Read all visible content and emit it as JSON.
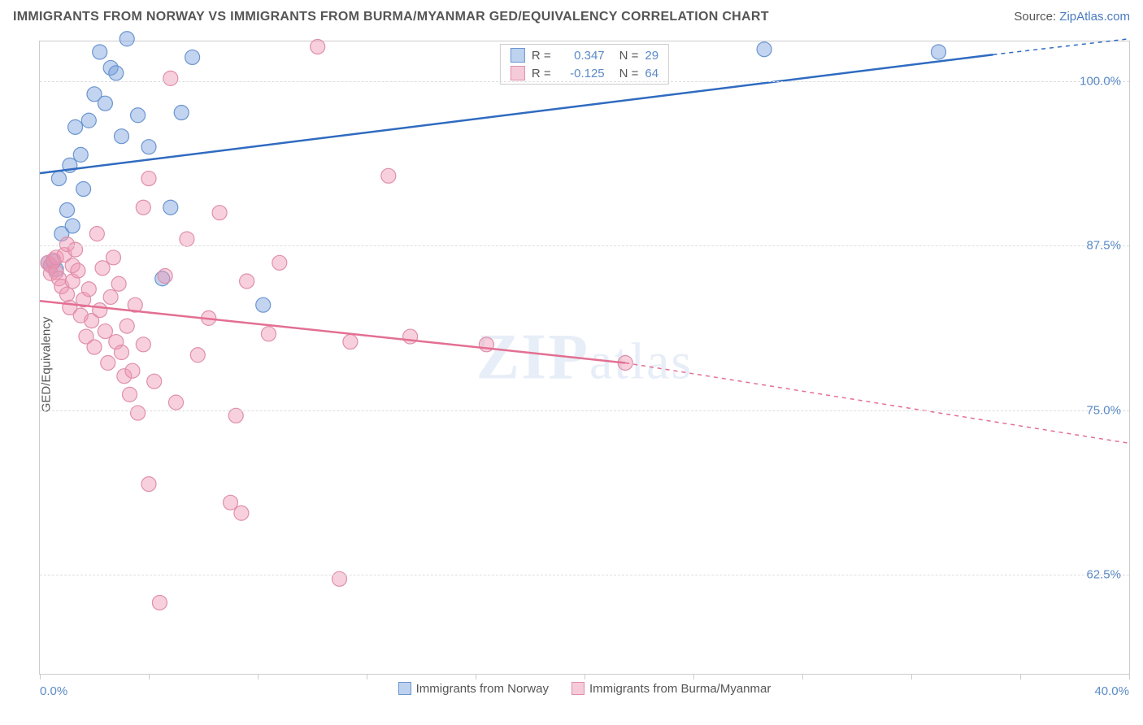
{
  "title": "IMMIGRANTS FROM NORWAY VS IMMIGRANTS FROM BURMA/MYANMAR GED/EQUIVALENCY CORRELATION CHART",
  "source_label": "Source: ",
  "source_link_text": "ZipAtlas.com",
  "ylabel": "GED/Equivalency",
  "watermark": {
    "bold": "ZIP",
    "rest": "atlas"
  },
  "chart": {
    "type": "scatter_with_regression",
    "xlim": [
      0,
      40
    ],
    "ylim": [
      55,
      103
    ],
    "x_ticks_minor": [
      0,
      4,
      8,
      12,
      16,
      20,
      24,
      28,
      32,
      36,
      40
    ],
    "x_labels": [
      {
        "x": 0,
        "text": "0.0%"
      },
      {
        "x": 40,
        "text": "40.0%"
      }
    ],
    "y_gridlines": [
      62.5,
      75.0,
      87.5,
      100.0
    ],
    "y_labels": [
      {
        "y": 62.5,
        "text": "62.5%"
      },
      {
        "y": 75.0,
        "text": "75.0%"
      },
      {
        "y": 87.5,
        "text": "87.5%"
      },
      {
        "y": 100.0,
        "text": "100.0%"
      }
    ],
    "grid_color": "#dddddd",
    "border_color": "#cccccc",
    "background_color": "#ffffff",
    "series": [
      {
        "name": "Immigrants from Norway",
        "color_fill": "rgba(120,160,220,0.45)",
        "color_stroke": "#6b95d0",
        "swatch_fill": "#bcd2ef",
        "swatch_border": "#6b95d0",
        "marker_radius": 9,
        "R": "0.347",
        "N": "29",
        "regression": {
          "x1": 0,
          "y1": 93,
          "x2": 35,
          "y2": 102,
          "x2_dash": 40,
          "y2_dash": 103.2
        },
        "line_color": "#2f6bc0",
        "points": [
          [
            0.3,
            86.2
          ],
          [
            0.4,
            86.0
          ],
          [
            0.5,
            86.3
          ],
          [
            0.6,
            85.7
          ],
          [
            0.7,
            92.6
          ],
          [
            0.8,
            88.4
          ],
          [
            1.0,
            90.2
          ],
          [
            1.1,
            93.6
          ],
          [
            1.2,
            89.0
          ],
          [
            1.3,
            96.5
          ],
          [
            1.5,
            94.4
          ],
          [
            1.6,
            91.8
          ],
          [
            1.8,
            97.0
          ],
          [
            2.0,
            99.0
          ],
          [
            2.2,
            102.2
          ],
          [
            2.4,
            98.3
          ],
          [
            2.6,
            101.0
          ],
          [
            2.8,
            100.6
          ],
          [
            3.0,
            95.8
          ],
          [
            3.2,
            103.2
          ],
          [
            3.6,
            97.4
          ],
          [
            4.0,
            95.0
          ],
          [
            4.5,
            85.0
          ],
          [
            4.8,
            90.4
          ],
          [
            5.2,
            97.6
          ],
          [
            5.6,
            101.8
          ],
          [
            8.2,
            83.0
          ],
          [
            26.6,
            102.4
          ],
          [
            33.0,
            102.2
          ]
        ]
      },
      {
        "name": "Immigrants from Burma/Myanmar",
        "color_fill": "rgba(240,150,180,0.45)",
        "color_stroke": "#df8fa9",
        "swatch_fill": "#f6cbd9",
        "swatch_border": "#df8fa9",
        "marker_radius": 9,
        "R": "-0.125",
        "N": "64",
        "regression": {
          "x1": 0,
          "y1": 83.3,
          "x2": 21.5,
          "y2": 78.6,
          "x2_dash": 40,
          "y2_dash": 72.5
        },
        "line_color": "#e36f93",
        "points": [
          [
            0.3,
            86.2
          ],
          [
            0.4,
            86.0
          ],
          [
            0.4,
            85.4
          ],
          [
            0.5,
            86.4
          ],
          [
            0.6,
            85.5
          ],
          [
            0.6,
            86.6
          ],
          [
            0.7,
            85.0
          ],
          [
            0.8,
            84.4
          ],
          [
            0.9,
            86.8
          ],
          [
            1.0,
            87.6
          ],
          [
            1.0,
            83.8
          ],
          [
            1.1,
            82.8
          ],
          [
            1.2,
            84.8
          ],
          [
            1.2,
            86.0
          ],
          [
            1.3,
            87.2
          ],
          [
            1.4,
            85.6
          ],
          [
            1.5,
            82.2
          ],
          [
            1.6,
            83.4
          ],
          [
            1.7,
            80.6
          ],
          [
            1.8,
            84.2
          ],
          [
            1.9,
            81.8
          ],
          [
            2.0,
            79.8
          ],
          [
            2.1,
            88.4
          ],
          [
            2.2,
            82.6
          ],
          [
            2.3,
            85.8
          ],
          [
            2.4,
            81.0
          ],
          [
            2.5,
            78.6
          ],
          [
            2.6,
            83.6
          ],
          [
            2.7,
            86.6
          ],
          [
            2.8,
            80.2
          ],
          [
            2.9,
            84.6
          ],
          [
            3.0,
            79.4
          ],
          [
            3.1,
            77.6
          ],
          [
            3.2,
            81.4
          ],
          [
            3.3,
            76.2
          ],
          [
            3.4,
            78.0
          ],
          [
            3.5,
            83.0
          ],
          [
            3.6,
            74.8
          ],
          [
            3.8,
            80.0
          ],
          [
            3.8,
            90.4
          ],
          [
            4.0,
            92.6
          ],
          [
            4.0,
            69.4
          ],
          [
            4.2,
            77.2
          ],
          [
            4.4,
            60.4
          ],
          [
            4.6,
            85.2
          ],
          [
            4.8,
            100.2
          ],
          [
            5.0,
            75.6
          ],
          [
            5.4,
            88.0
          ],
          [
            5.8,
            79.2
          ],
          [
            6.2,
            82.0
          ],
          [
            6.6,
            90.0
          ],
          [
            7.0,
            68.0
          ],
          [
            7.2,
            74.6
          ],
          [
            7.4,
            67.2
          ],
          [
            7.6,
            84.8
          ],
          [
            8.4,
            80.8
          ],
          [
            8.8,
            86.2
          ],
          [
            10.2,
            102.6
          ],
          [
            11.0,
            62.2
          ],
          [
            11.4,
            80.2
          ],
          [
            12.8,
            92.8
          ],
          [
            13.6,
            80.6
          ],
          [
            16.4,
            80.0
          ],
          [
            21.5,
            78.6
          ]
        ]
      }
    ]
  },
  "legend_top": {
    "rows": [
      {
        "series_index": 0,
        "r_label": "R =",
        "n_label": "N ="
      },
      {
        "series_index": 1,
        "r_label": "R =",
        "n_label": "N ="
      }
    ]
  },
  "legend_bottom": {
    "items": [
      {
        "series_index": 0
      },
      {
        "series_index": 1
      }
    ]
  }
}
